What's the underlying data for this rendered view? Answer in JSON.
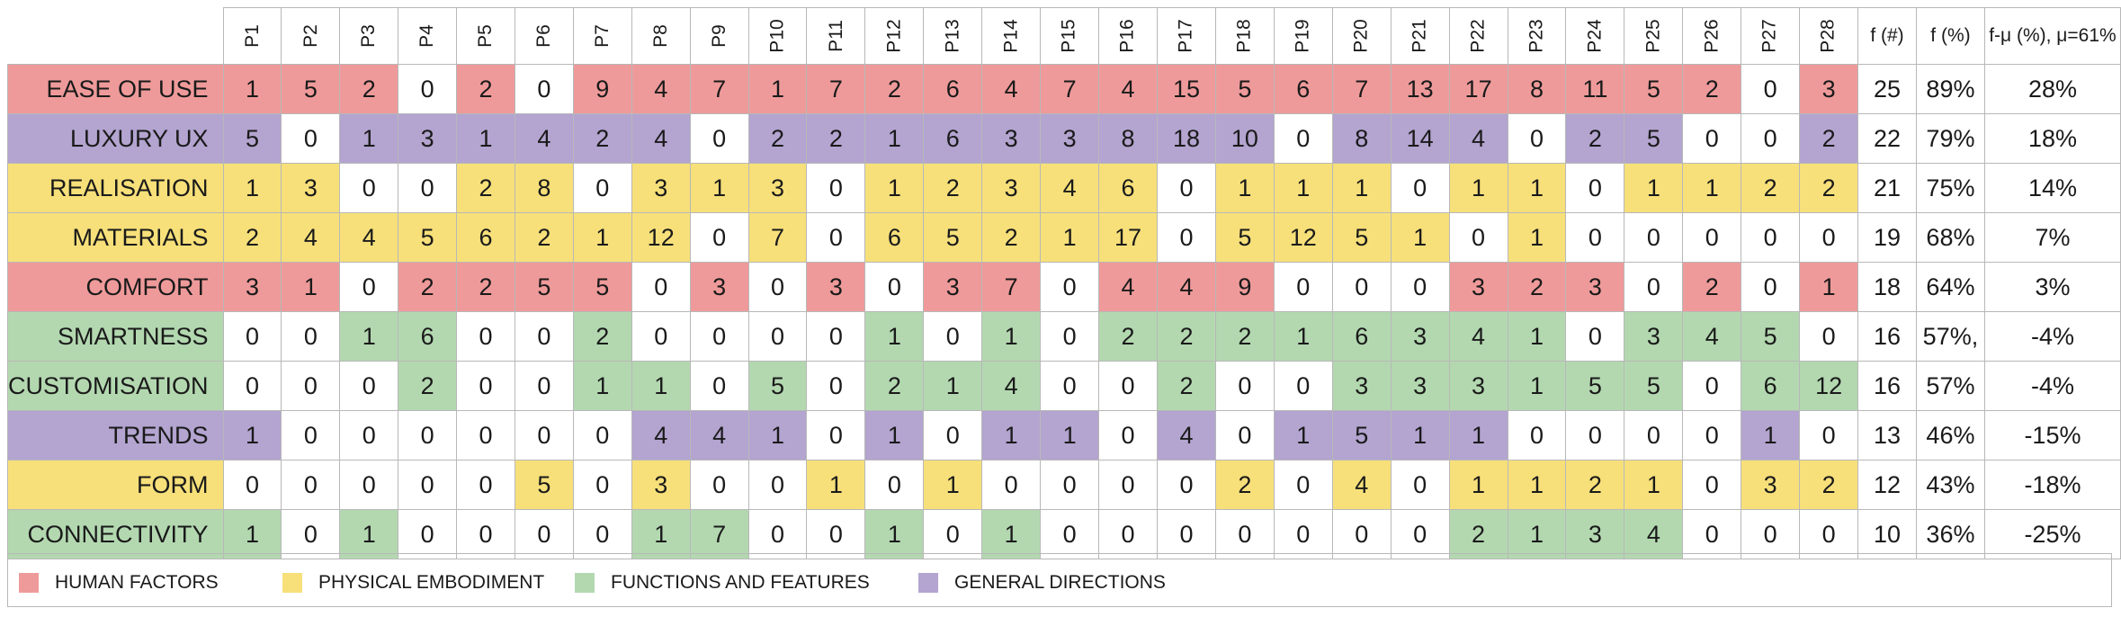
{
  "colors": {
    "human_factors": "#ef9a9a",
    "physical_embodiment": "#f7e07a",
    "functions_and_features": "#b3d8b0",
    "general_directions": "#b3a4d0",
    "empty": "#ffffff"
  },
  "columns": [
    "P1",
    "P2",
    "P3",
    "P4",
    "P5",
    "P6",
    "P7",
    "P8",
    "P9",
    "P10",
    "P11",
    "P12",
    "P13",
    "P14",
    "P15",
    "P16",
    "P17",
    "P18",
    "P19",
    "P20",
    "P21",
    "P22",
    "P23",
    "P24",
    "P25",
    "P26",
    "P27",
    "P28"
  ],
  "stat_headers": [
    "f (#)",
    "f (%)",
    "f-μ (%), μ=61%"
  ],
  "rows": [
    {
      "label": "EASE OF USE",
      "category": "human_factors",
      "values": [
        "1",
        "5",
        "2",
        "0",
        "2",
        "0",
        "9",
        "4",
        "7",
        "1",
        "7",
        "2",
        "6",
        "4",
        "7",
        "4",
        "15",
        "5",
        "6",
        "7",
        "13",
        "17",
        "8",
        "11",
        "5",
        "2",
        "0",
        "3"
      ],
      "f_count": "25",
      "f_pct": "89%",
      "f_mu": "28%"
    },
    {
      "label": "LUXURY UX",
      "category": "general_directions",
      "values": [
        "5",
        "0",
        "1",
        "3",
        "1",
        "4",
        "2",
        "4",
        "0",
        "2",
        "2",
        "1",
        "6",
        "3",
        "3",
        "8",
        "18",
        "10",
        "0",
        "8",
        "14",
        "4",
        "0",
        "2",
        "5",
        "0",
        "0",
        "2"
      ],
      "f_count": "22",
      "f_pct": "79%",
      "f_mu": "18%"
    },
    {
      "label": "REALISATION",
      "category": "physical_embodiment",
      "values": [
        "1",
        "3",
        "0",
        "0",
        "2",
        "8",
        "0",
        "3",
        "1",
        "3",
        "0",
        "1",
        "2",
        "3",
        "4",
        "6",
        "0",
        "1",
        "1",
        "1",
        "0",
        "1",
        "1",
        "0",
        "1",
        "1",
        "2",
        "2"
      ],
      "f_count": "21",
      "f_pct": "75%",
      "f_mu": "14%"
    },
    {
      "label": "MATERIALS",
      "category": "physical_embodiment",
      "values": [
        "2",
        "4",
        "4",
        "5",
        "6",
        "2",
        "1",
        "12",
        "0",
        "7",
        "0",
        "6",
        "5",
        "2",
        "1",
        "17",
        "0",
        "5",
        "12",
        "5",
        "1",
        "0",
        "1",
        "0",
        "0",
        "0",
        "0",
        "0"
      ],
      "f_count": "19",
      "f_pct": "68%",
      "f_mu": "7%"
    },
    {
      "label": "COMFORT",
      "category": "human_factors",
      "values": [
        "3",
        "1",
        "0",
        "2",
        "2",
        "5",
        "5",
        "0",
        "3",
        "0",
        "3",
        "0",
        "3",
        "7",
        "0",
        "4",
        "4",
        "9",
        "0",
        "0",
        "0",
        "3",
        "2",
        "3",
        "0",
        "2",
        "0",
        "1"
      ],
      "f_count": "18",
      "f_pct": "64%",
      "f_mu": "3%"
    },
    {
      "label": "SMARTNESS",
      "category": "functions_and_features",
      "values": [
        "0",
        "0",
        "1",
        "6",
        "0",
        "0",
        "2",
        "0",
        "0",
        "0",
        "0",
        "1",
        "0",
        "1",
        "0",
        "2",
        "2",
        "2",
        "1",
        "6",
        "3",
        "4",
        "1",
        "0",
        "3",
        "4",
        "5",
        "0"
      ],
      "f_count": "16",
      "f_pct": "57%,",
      "f_mu": "-4%"
    },
    {
      "label": "CUSTOMISATION",
      "category": "functions_and_features",
      "values": [
        "0",
        "0",
        "0",
        "2",
        "0",
        "0",
        "1",
        "1",
        "0",
        "5",
        "0",
        "2",
        "1",
        "4",
        "0",
        "0",
        "2",
        "0",
        "0",
        "3",
        "3",
        "3",
        "1",
        "5",
        "5",
        "0",
        "6",
        "12"
      ],
      "f_count": "16",
      "f_pct": "57%",
      "f_mu": "-4%"
    },
    {
      "label": "TRENDS",
      "category": "general_directions",
      "values": [
        "1",
        "0",
        "0",
        "0",
        "0",
        "0",
        "0",
        "4",
        "4",
        "1",
        "0",
        "1",
        "0",
        "1",
        "1",
        "0",
        "4",
        "0",
        "1",
        "5",
        "1",
        "1",
        "0",
        "0",
        "0",
        "0",
        "1",
        "0"
      ],
      "f_count": "13",
      "f_pct": "46%",
      "f_mu": "-15%"
    },
    {
      "label": "FORM",
      "category": "physical_embodiment",
      "values": [
        "0",
        "0",
        "0",
        "0",
        "0",
        "5",
        "0",
        "3",
        "0",
        "0",
        "1",
        "0",
        "1",
        "0",
        "0",
        "0",
        "0",
        "2",
        "0",
        "4",
        "0",
        "1",
        "1",
        "2",
        "1",
        "0",
        "3",
        "2"
      ],
      "f_count": "12",
      "f_pct": "43%",
      "f_mu": "-18%"
    },
    {
      "label": "CONNECTIVITY",
      "category": "functions_and_features",
      "values": [
        "1",
        "0",
        "1",
        "0",
        "0",
        "0",
        "0",
        "1",
        "7",
        "0",
        "0",
        "1",
        "0",
        "1",
        "0",
        "0",
        "0",
        "0",
        "0",
        "0",
        "0",
        "2",
        "1",
        "3",
        "4",
        "0",
        "0",
        "0"
      ],
      "f_count": "10",
      "f_pct": "36%",
      "f_mu": "-25%"
    }
  ],
  "legend": [
    {
      "label": "HUMAN FACTORS",
      "category": "human_factors"
    },
    {
      "label": "PHYSICAL EMBODIMENT",
      "category": "physical_embodiment"
    },
    {
      "label": "FUNCTIONS AND FEATURES",
      "category": "functions_and_features"
    },
    {
      "label": "GENERAL DIRECTIONS",
      "category": "general_directions"
    }
  ]
}
